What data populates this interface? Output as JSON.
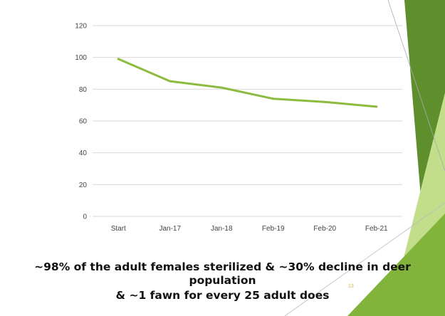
{
  "slide_number": "13",
  "caption": {
    "line1": "~98% of the adult females sterilized & ~30% decline in deer population",
    "line2": "& ~1 fawn for every 25 adult does"
  },
  "colors": {
    "line": "#8dbb3f",
    "grid": "#d9d9d9",
    "axis_text": "#444444",
    "accent_dark": "#5e8f2c",
    "accent_mid": "#82b43c",
    "accent_light": "#c3de8a"
  },
  "chart_data": {
    "type": "line",
    "categories": [
      "Start",
      "Jan-17",
      "Jan-18",
      "Feb-19",
      "Feb-20",
      "Feb-21"
    ],
    "series": [
      {
        "values": [
          99,
          85,
          81,
          74,
          72,
          69
        ]
      }
    ],
    "title": "",
    "xlabel": "",
    "ylabel": "",
    "ylim": [
      0,
      120
    ],
    "yticks": [
      0,
      20,
      40,
      60,
      80,
      100,
      120
    ],
    "grid": true,
    "legend": "none"
  }
}
